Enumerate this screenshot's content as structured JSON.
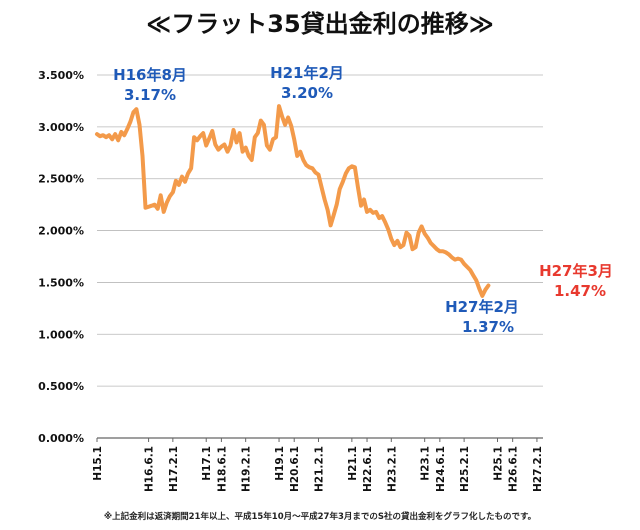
{
  "title": "≪フラット35貸出金利の推移≫",
  "footnote": "※上記金利は返済期間21年以上、平成15年10月～平成27年3月までのS社の貸出金利をグラフ化したものです。",
  "colors": {
    "line": "#f39a4a",
    "annotation_blue": "#1f5ab8",
    "annotation_red": "#e8392e",
    "grid": "#b8b8b8"
  },
  "chart_data": {
    "type": "line",
    "title": "≪フラット35貸出金利の推移≫",
    "xlabel": "",
    "ylabel": "",
    "ylim": [
      0,
      3.5
    ],
    "grid": true,
    "y_ticks": [
      "0.000%",
      "0.500%",
      "1.000%",
      "1.500%",
      "2.000%",
      "2.500%",
      "3.000%",
      "3.500%"
    ],
    "x_ticks": [
      {
        "label": "H15.1",
        "x": 0
      },
      {
        "label": "H16.6.1",
        "x": 17
      },
      {
        "label": "H17.2.1",
        "x": 25
      },
      {
        "label": "H17.1",
        "x": 36
      },
      {
        "label": "H18.6.1",
        "x": 41
      },
      {
        "label": "H19.2.1",
        "x": 49
      },
      {
        "label": "H19.1",
        "x": 60
      },
      {
        "label": "H20.6.1",
        "x": 65
      },
      {
        "label": "H21.2.1",
        "x": 73
      },
      {
        "label": "H21.1",
        "x": 84
      },
      {
        "label": "H22.6.1",
        "x": 89
      },
      {
        "label": "H23.2.1",
        "x": 97
      },
      {
        "label": "H23.1",
        "x": 108
      },
      {
        "label": "H24.6.1",
        "x": 113
      },
      {
        "label": "H25.2.1",
        "x": 121
      },
      {
        "label": "H25.1",
        "x": 132
      },
      {
        "label": "H26.6.1",
        "x": 137
      },
      {
        "label": "H27.2.1",
        "x": 145
      }
    ],
    "xlim": [
      0,
      147
    ],
    "series": [
      {
        "points": [
          [
            0,
            2.93
          ],
          [
            1,
            2.91
          ],
          [
            2,
            2.92
          ],
          [
            3,
            2.9
          ],
          [
            4,
            2.92
          ],
          [
            5,
            2.88
          ],
          [
            6,
            2.93
          ],
          [
            7,
            2.87
          ],
          [
            8,
            2.95
          ],
          [
            9,
            2.92
          ],
          [
            10,
            2.98
          ],
          [
            11,
            3.05
          ],
          [
            12,
            3.14
          ],
          [
            13,
            3.17
          ],
          [
            14,
            3.02
          ],
          [
            15,
            2.72
          ],
          [
            16,
            2.22
          ],
          [
            17,
            2.23
          ],
          [
            18,
            2.24
          ],
          [
            19,
            2.25
          ],
          [
            20,
            2.21
          ],
          [
            21,
            2.34
          ],
          [
            22,
            2.18
          ],
          [
            23,
            2.27
          ],
          [
            24,
            2.33
          ],
          [
            25,
            2.37
          ],
          [
            26,
            2.48
          ],
          [
            27,
            2.44
          ],
          [
            28,
            2.52
          ],
          [
            29,
            2.47
          ],
          [
            30,
            2.55
          ],
          [
            31,
            2.6
          ],
          [
            32,
            2.9
          ],
          [
            33,
            2.87
          ],
          [
            34,
            2.91
          ],
          [
            35,
            2.94
          ],
          [
            36,
            2.82
          ],
          [
            37,
            2.89
          ],
          [
            38,
            2.96
          ],
          [
            39,
            2.83
          ],
          [
            40,
            2.78
          ],
          [
            41,
            2.81
          ],
          [
            42,
            2.83
          ],
          [
            43,
            2.76
          ],
          [
            44,
            2.82
          ],
          [
            45,
            2.97
          ],
          [
            46,
            2.85
          ],
          [
            47,
            2.94
          ],
          [
            48,
            2.76
          ],
          [
            49,
            2.8
          ],
          [
            50,
            2.72
          ],
          [
            51,
            2.68
          ],
          [
            52,
            2.9
          ],
          [
            53,
            2.94
          ],
          [
            54,
            3.06
          ],
          [
            55,
            3.02
          ],
          [
            56,
            2.82
          ],
          [
            57,
            2.78
          ],
          [
            58,
            2.88
          ],
          [
            59,
            2.9
          ],
          [
            60,
            3.2
          ],
          [
            61,
            3.1
          ],
          [
            62,
            3.02
          ],
          [
            63,
            3.09
          ],
          [
            64,
            3.01
          ],
          [
            65,
            2.88
          ],
          [
            66,
            2.72
          ],
          [
            67,
            2.76
          ],
          [
            68,
            2.68
          ],
          [
            69,
            2.63
          ],
          [
            70,
            2.61
          ],
          [
            71,
            2.6
          ],
          [
            72,
            2.56
          ],
          [
            73,
            2.54
          ],
          [
            74,
            2.42
          ],
          [
            75,
            2.3
          ],
          [
            76,
            2.2
          ],
          [
            77,
            2.05
          ],
          [
            78,
            2.15
          ],
          [
            79,
            2.25
          ],
          [
            80,
            2.4
          ],
          [
            81,
            2.47
          ],
          [
            82,
            2.55
          ],
          [
            83,
            2.6
          ],
          [
            84,
            2.62
          ],
          [
            85,
            2.61
          ],
          [
            86,
            2.42
          ],
          [
            87,
            2.24
          ],
          [
            88,
            2.3
          ],
          [
            89,
            2.18
          ],
          [
            90,
            2.2
          ],
          [
            91,
            2.17
          ],
          [
            92,
            2.18
          ],
          [
            93,
            2.12
          ],
          [
            94,
            2.14
          ],
          [
            95,
            2.08
          ],
          [
            96,
            2.01
          ],
          [
            97,
            1.92
          ],
          [
            98,
            1.86
          ],
          [
            99,
            1.9
          ],
          [
            100,
            1.84
          ],
          [
            101,
            1.86
          ],
          [
            102,
            1.98
          ],
          [
            103,
            1.95
          ],
          [
            104,
            1.82
          ],
          [
            105,
            1.84
          ],
          [
            106,
            1.98
          ],
          [
            107,
            2.04
          ],
          [
            108,
            1.97
          ],
          [
            109,
            1.93
          ],
          [
            110,
            1.88
          ],
          [
            111,
            1.85
          ],
          [
            112,
            1.82
          ],
          [
            113,
            1.8
          ],
          [
            114,
            1.8
          ],
          [
            115,
            1.79
          ],
          [
            116,
            1.77
          ],
          [
            117,
            1.74
          ],
          [
            118,
            1.72
          ],
          [
            119,
            1.73
          ],
          [
            120,
            1.72
          ],
          [
            121,
            1.68
          ],
          [
            122,
            1.65
          ],
          [
            123,
            1.62
          ],
          [
            124,
            1.57
          ],
          [
            125,
            1.52
          ],
          [
            126,
            1.44
          ],
          [
            127,
            1.37
          ],
          [
            128,
            1.43
          ],
          [
            129,
            1.47
          ]
        ]
      }
    ],
    "annotations": [
      {
        "line1": "H16年8月",
        "line2": "3.17%",
        "color": "blue",
        "position": "above-peak"
      },
      {
        "line1": "H21年2月",
        "line2": "3.20%",
        "color": "blue",
        "position": "above-peak"
      },
      {
        "line1": "H27年2月",
        "line2": "1.37%",
        "color": "blue",
        "position": "below-left"
      },
      {
        "line1": "H27年3月",
        "line2": "1.47%",
        "color": "red",
        "position": "right"
      }
    ]
  }
}
